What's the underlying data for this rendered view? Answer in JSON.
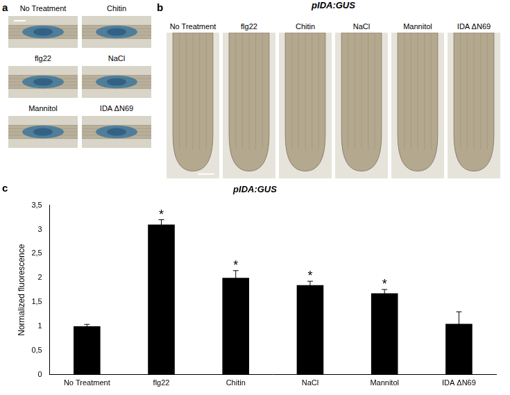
{
  "figure": {
    "panels": [
      {
        "letter": "a",
        "images": [
          "No Treatment",
          "Chitin",
          "flg22",
          "NaCl",
          "Mannitol",
          "IDA ΔN69"
        ]
      },
      {
        "letter": "b",
        "title": "pIDA:GUS",
        "images": [
          "No Treatment",
          "flg22",
          "Chitin",
          "NaCl",
          "Mannitol",
          "IDA ΔN69"
        ]
      },
      {
        "letter": "c"
      }
    ]
  },
  "chart_data": {
    "type": "bar",
    "title": "pIDA:GUS",
    "categories": [
      "No Treatment",
      "flg22",
      "Chitin",
      "NaCl",
      "Mannitol",
      "IDA ΔN69"
    ],
    "values": [
      1.0,
      3.1,
      2.0,
      1.85,
      1.68,
      1.05
    ],
    "errors": [
      0.04,
      0.1,
      0.15,
      0.08,
      0.08,
      0.25
    ],
    "annotations": [
      null,
      "*",
      "*",
      "*",
      "*",
      null
    ],
    "color": "#000000",
    "ylabel": "Normalized fluorescence",
    "ylim": [
      0,
      3.5
    ],
    "yticks": [
      0,
      {
        "value": 0.5,
        "label": "0,5"
      },
      1,
      {
        "value": 1.5,
        "label": "1,5"
      },
      2,
      {
        "value": 2.5,
        "label": "2,5"
      },
      3,
      {
        "value": 3.5,
        "label": "3,5"
      }
    ],
    "grid": false
  }
}
